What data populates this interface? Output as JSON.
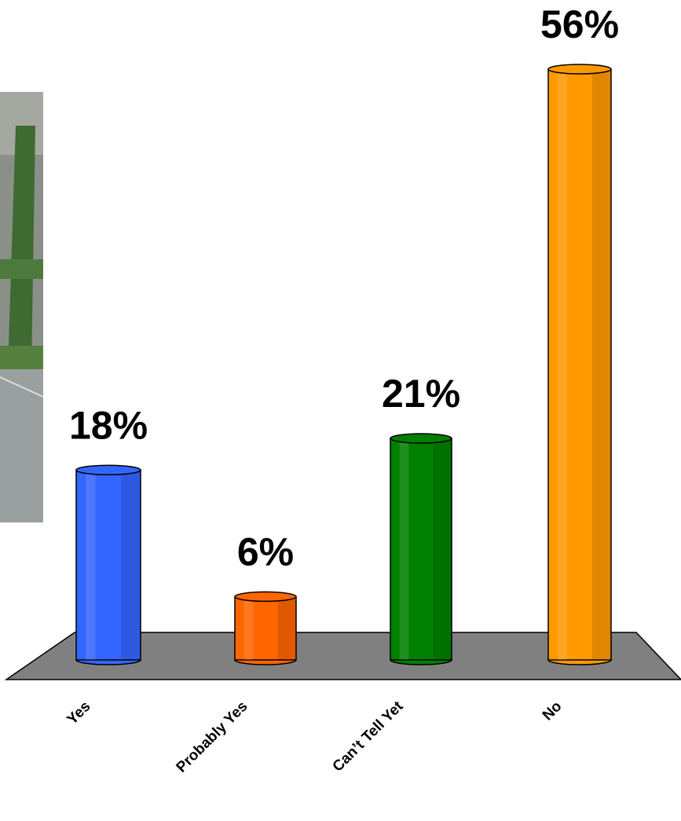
{
  "chart_data": {
    "type": "bar",
    "categories": [
      "Yes",
      "Probably Yes",
      "Can’t Tell Yet",
      "No"
    ],
    "values": [
      18,
      6,
      21,
      56
    ],
    "value_labels": [
      "18%",
      "6%",
      "21%",
      "56%"
    ],
    "colors": [
      "#3366ff",
      "#ff6600",
      "#008000",
      "#ff9900"
    ]
  }
}
